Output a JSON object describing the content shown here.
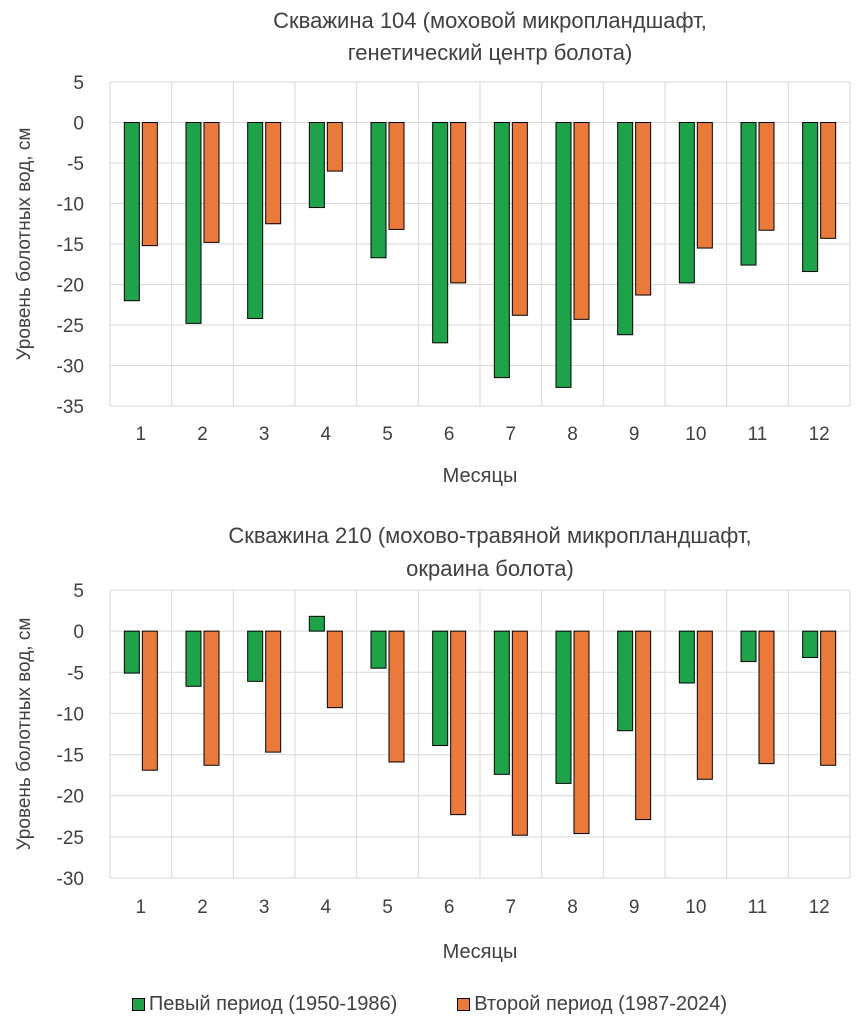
{
  "chart_data": [
    {
      "type": "bar",
      "title_lines": [
        "Скважина 104 (моховой микропландшафт,",
        "генетический  центр болота)"
      ],
      "xlabel": "Месяцы",
      "ylabel": "Уровень болотных вод, см",
      "ylim": [
        -35,
        5
      ],
      "yticks": [
        5,
        0,
        -5,
        -10,
        -15,
        -20,
        -25,
        -30,
        -35
      ],
      "categories": [
        "1",
        "2",
        "3",
        "4",
        "5",
        "6",
        "7",
        "8",
        "9",
        "10",
        "11",
        "12"
      ],
      "grid": true,
      "series": [
        {
          "name": "Певый период (1950-1986)",
          "color": "#1ea34a",
          "values": [
            -22.0,
            -24.8,
            -24.2,
            -10.5,
            -16.7,
            -27.2,
            -31.5,
            -32.7,
            -26.2,
            -19.8,
            -17.6,
            -18.4
          ]
        },
        {
          "name": "Второй период (1987-2024)",
          "color": "#ea7a3c",
          "values": [
            -15.2,
            -14.8,
            -12.5,
            -6.0,
            -13.2,
            -19.8,
            -23.8,
            -24.3,
            -21.3,
            -15.5,
            -13.3,
            -14.3
          ]
        }
      ]
    },
    {
      "type": "bar",
      "title_lines": [
        "Скважина 210 (мохово-травяной микропландшафт,",
        "окраина болота)"
      ],
      "xlabel": "Месяцы",
      "ylabel": "Уровень болотных вод, см",
      "ylim": [
        -30,
        5
      ],
      "yticks": [
        5,
        0,
        -5,
        -10,
        -15,
        -20,
        -25,
        -30
      ],
      "categories": [
        "1",
        "2",
        "3",
        "4",
        "5",
        "6",
        "7",
        "8",
        "9",
        "10",
        "11",
        "12"
      ],
      "grid": true,
      "series": [
        {
          "name": "Певый период (1950-1986)",
          "color": "#1ea34a",
          "values": [
            -5.1,
            -6.7,
            -6.1,
            1.8,
            -4.5,
            -13.9,
            -17.4,
            -18.5,
            -12.1,
            -6.3,
            -3.7,
            -3.2
          ]
        },
        {
          "name": "Второй период (1987-2024)",
          "color": "#ea7a3c",
          "values": [
            -16.9,
            -16.3,
            -14.7,
            -9.3,
            -15.9,
            -22.3,
            -24.8,
            -24.6,
            -22.9,
            -18.0,
            -16.1,
            -16.3
          ]
        }
      ]
    }
  ],
  "legend": {
    "position": "bottom",
    "items": [
      {
        "label": "Певый период (1950-1986)",
        "color": "#1ea34a"
      },
      {
        "label": "Второй период (1987-2024)",
        "color": "#ea7a3c"
      }
    ]
  }
}
